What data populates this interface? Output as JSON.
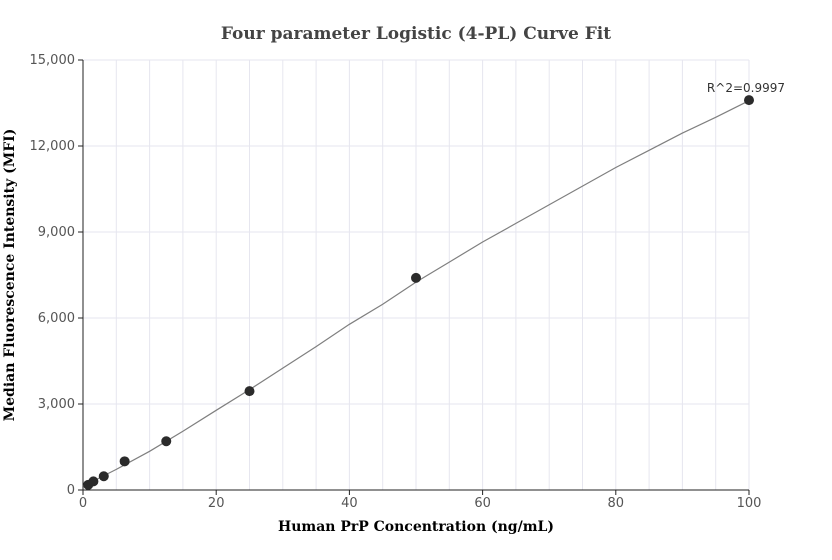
{
  "chart_data": {
    "type": "scatter",
    "title": "Four parameter Logistic (4-PL) Curve Fit",
    "xlabel": "Human PrP Concentration (ng/mL)",
    "ylabel": "Median Fluorescence Intensity (MFI)",
    "xlim": [
      0,
      100
    ],
    "ylim": [
      0,
      15000
    ],
    "xticks": [
      0,
      20,
      40,
      60,
      80,
      100
    ],
    "xtick_labels": [
      "0",
      "20",
      "40",
      "60",
      "80",
      "100"
    ],
    "yticks": [
      0,
      3000,
      6000,
      9000,
      12000,
      15000
    ],
    "ytick_labels": [
      "0",
      "3,000",
      "6,000",
      "9,000",
      "12,000",
      "15,000"
    ],
    "grid": true,
    "series": [
      {
        "kind": "points",
        "color": "#2b2b2b",
        "x": [
          0.78,
          1.56,
          3.12,
          6.25,
          12.5,
          25,
          50,
          100
        ],
        "y": [
          180,
          300,
          480,
          1000,
          1700,
          3450,
          7400,
          13600
        ]
      },
      {
        "kind": "fit-curve",
        "color": "#7f7f7f",
        "x": [
          0,
          5,
          10,
          15,
          20,
          25,
          30,
          35,
          40,
          45,
          50,
          55,
          60,
          65,
          70,
          75,
          80,
          85,
          90,
          95,
          100
        ],
        "y": [
          130,
          720,
          1350,
          2050,
          2780,
          3500,
          4250,
          5000,
          5780,
          6480,
          7250,
          7950,
          8650,
          9300,
          9950,
          10600,
          11250,
          11850,
          12450,
          13000,
          13580
        ]
      }
    ],
    "annotations": [
      {
        "text": "R^2=0.9997",
        "x": 100,
        "y": 13600
      }
    ]
  }
}
